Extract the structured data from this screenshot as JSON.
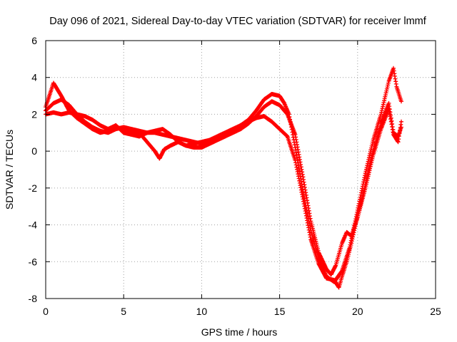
{
  "chart_data": {
    "type": "scatter",
    "title": "Day 096 of 2021, Sidereal Day-to-day VTEC variation (SDTVAR) for receiver lmmf",
    "xlabel": "GPS time / hours",
    "ylabel": "SDTVAR / TECUs",
    "xlim": [
      0,
      25
    ],
    "ylim": [
      -8,
      6
    ],
    "xticks": [
      0,
      5,
      10,
      15,
      20,
      25
    ],
    "yticks": [
      -8,
      -6,
      -4,
      -2,
      0,
      2,
      4,
      6
    ],
    "grid": true,
    "marker": "+",
    "series_color": "#ff0000",
    "series": [
      {
        "x": [
          0.0,
          0.5,
          1.0,
          1.5,
          2.0,
          2.5,
          3.0,
          3.5,
          4.0,
          4.5,
          5.0,
          5.5,
          6.0,
          6.5,
          7.0,
          7.5,
          8.0,
          8.5,
          9.0,
          9.5,
          10.0,
          10.5,
          11.0,
          11.5,
          12.0,
          12.5,
          13.0,
          13.5,
          14.0,
          14.5,
          15.0,
          15.3,
          15.6,
          16.0,
          16.5,
          17.0,
          17.5,
          18.0,
          18.5,
          19.0,
          19.5,
          20.0,
          20.5,
          21.0,
          21.5,
          22.0,
          22.3,
          22.5,
          22.8
        ],
        "y": [
          2.2,
          2.6,
          2.8,
          2.5,
          2.0,
          1.6,
          1.3,
          1.1,
          1.0,
          1.2,
          1.3,
          1.2,
          1.1,
          1.0,
          1.0,
          0.9,
          0.8,
          0.7,
          0.6,
          0.5,
          0.4,
          0.5,
          0.7,
          0.9,
          1.1,
          1.4,
          1.7,
          2.2,
          2.8,
          3.1,
          3.0,
          2.6,
          2.0,
          0.2,
          -2.2,
          -4.3,
          -5.8,
          -6.8,
          -7.1,
          -6.5,
          -5.2,
          -3.2,
          -1.2,
          0.6,
          2.0,
          3.8,
          4.5,
          3.5,
          2.7
        ]
      },
      {
        "x": [
          0.0,
          0.5,
          1.0,
          1.5,
          2.0,
          2.5,
          3.0,
          3.5,
          4.0,
          4.5,
          5.0,
          5.5,
          6.0,
          6.5,
          7.0,
          7.3,
          7.6,
          8.0,
          8.5,
          9.0,
          9.5,
          10.0,
          10.5,
          11.0,
          11.5,
          12.0,
          12.5,
          13.0,
          13.5,
          14.0,
          14.5,
          15.0,
          15.5,
          16.0,
          16.5,
          17.0,
          17.5,
          18.0,
          18.5,
          18.8,
          19.0,
          19.3,
          19.6,
          20.0,
          20.5,
          21.0,
          21.5,
          22.0,
          22.3,
          22.6,
          22.8
        ],
        "y": [
          2.4,
          3.7,
          3.0,
          2.2,
          1.8,
          1.5,
          1.2,
          1.0,
          1.1,
          1.3,
          1.2,
          1.1,
          1.0,
          0.5,
          0.0,
          -0.4,
          0.1,
          0.3,
          0.5,
          0.3,
          0.4,
          0.5,
          0.6,
          0.8,
          1.0,
          1.2,
          1.4,
          1.6,
          1.8,
          1.9,
          1.6,
          1.2,
          0.8,
          -0.5,
          -2.6,
          -4.8,
          -6.1,
          -6.9,
          -7.0,
          -7.4,
          -6.8,
          -6.0,
          -5.0,
          -3.5,
          -1.8,
          0.0,
          1.5,
          2.6,
          1.0,
          0.8,
          1.3
        ]
      },
      {
        "x": [
          0.0,
          0.5,
          1.0,
          1.5,
          2.0,
          2.5,
          3.0,
          3.5,
          4.0,
          4.5,
          5.0,
          5.5,
          6.0,
          6.5,
          7.0,
          7.5,
          8.0,
          8.5,
          9.0,
          9.5,
          10.0,
          10.5,
          11.0,
          11.5,
          12.0,
          12.5,
          13.0,
          13.5,
          14.0,
          14.5,
          15.0,
          15.5,
          16.0,
          16.5,
          17.0,
          17.5,
          18.0,
          18.3,
          18.6,
          19.0,
          19.3,
          19.6,
          20.0,
          20.5,
          21.0,
          21.5,
          22.0,
          22.3,
          22.6,
          22.8
        ],
        "y": [
          2.0,
          2.1,
          2.0,
          2.1,
          2.0,
          1.9,
          1.7,
          1.4,
          1.2,
          1.4,
          1.0,
          0.9,
          0.8,
          1.0,
          1.1,
          1.2,
          0.9,
          0.5,
          0.3,
          0.2,
          0.2,
          0.4,
          0.6,
          0.8,
          1.0,
          1.2,
          1.5,
          1.9,
          2.4,
          2.7,
          2.5,
          2.0,
          0.9,
          -1.4,
          -3.8,
          -5.5,
          -6.4,
          -6.7,
          -6.2,
          -5.0,
          -4.4,
          -4.6,
          -3.6,
          -2.0,
          -0.2,
          1.2,
          2.3,
          0.9,
          0.5,
          1.6
        ]
      }
    ]
  }
}
